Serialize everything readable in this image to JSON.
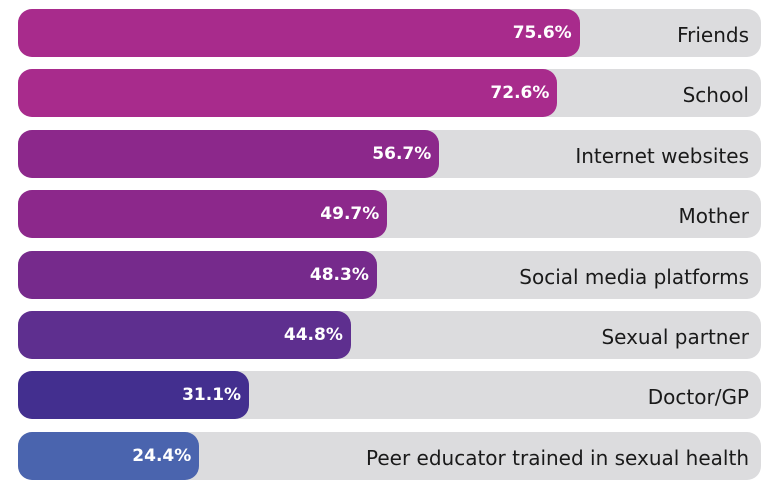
{
  "chart_data": {
    "type": "bar",
    "orientation": "horizontal",
    "categories": [
      "Friends",
      "School",
      "Internet websites",
      "Mother",
      "Social media platforms",
      "Sexual partner",
      "Doctor/GP",
      "Peer educator trained in sexual health"
    ],
    "values": [
      75.6,
      72.6,
      56.7,
      49.7,
      48.3,
      44.8,
      31.1,
      24.4
    ],
    "value_labels": [
      "75.6%",
      "72.6%",
      "56.7%",
      "49.7%",
      "48.3%",
      "44.8%",
      "31.1%",
      "24.4%"
    ],
    "colors": [
      "#a82b8c",
      "#a82b8c",
      "#8c288b",
      "#8c288b",
      "#762a8c",
      "#5e2f8f",
      "#432f8f",
      "#4a64ae"
    ],
    "track_color": "#dcdcde",
    "xlim": [
      0,
      100
    ],
    "title": "",
    "xlabel": "",
    "ylabel": "",
    "grid": false
  }
}
